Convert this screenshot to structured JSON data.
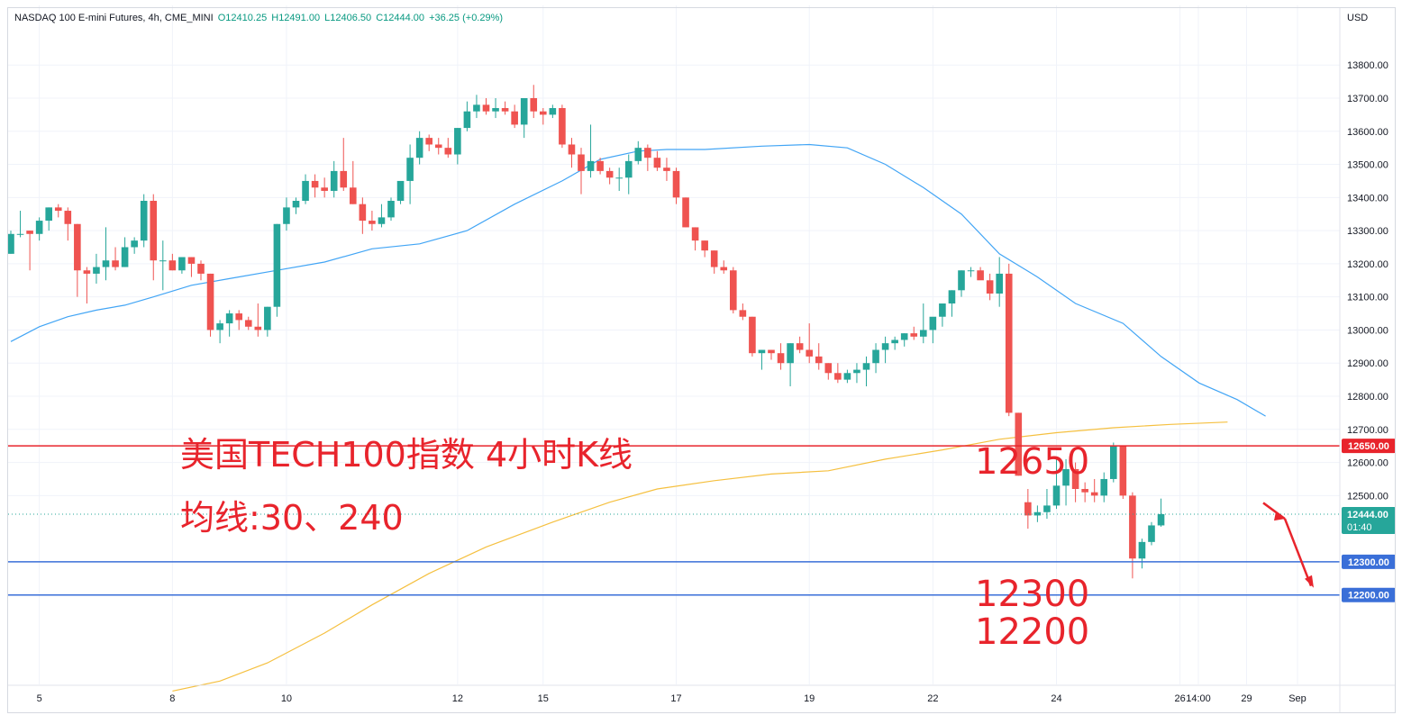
{
  "legend": {
    "symbol": "NASDAQ 100 E-mini Futures, 4h, CME_MINI",
    "open": "O12410.25",
    "high": "H12491.00",
    "low": "L12406.50",
    "close": "C12444.00",
    "change": "+36.25 (+0.29%)"
  },
  "currency": "USD",
  "annotations": {
    "title": "美国TECH100指数 4小时K线",
    "subtitle": "均线:30、240",
    "level_12650": "12650",
    "level_12300": "12300",
    "level_12200": "12200"
  },
  "price_tags": {
    "line_12650": "12650.00",
    "line_12300": "12300.00",
    "line_12200": "12200.00",
    "last_price": "12444.00",
    "countdown": "01:40"
  },
  "colors": {
    "up": "#26a69a",
    "down": "#ef5350",
    "ma30": "#42a5f5",
    "ma240": "#f5c040",
    "resistance_line": "#e8242c",
    "support_line": "#3a6fd8",
    "annotation": "#e8242c"
  },
  "chart_data": {
    "type": "candlestick",
    "timeframe": "4h",
    "ylim": [
      11930,
      13980
    ],
    "y_ticks": [
      "13800.00",
      "13700.00",
      "13600.00",
      "13500.00",
      "13400.00",
      "13300.00",
      "13200.00",
      "13100.00",
      "13000.00",
      "12900.00",
      "12800.00",
      "12700.00",
      "12600.00",
      "12500.00"
    ],
    "x_ticks": [
      "5",
      "8",
      "10",
      "12",
      "15",
      "17",
      "19",
      "22",
      "24",
      "26",
      "29",
      "14:00",
      "Sep"
    ],
    "candles_ohlc": [
      [
        13230,
        13300,
        13230,
        13290
      ],
      [
        13290,
        13360,
        13280,
        13290
      ],
      [
        13300,
        13300,
        13180,
        13290
      ],
      [
        13290,
        13340,
        13270,
        13330
      ],
      [
        13330,
        13370,
        13300,
        13370
      ],
      [
        13370,
        13380,
        13340,
        13360
      ],
      [
        13360,
        13370,
        13270,
        13320
      ],
      [
        13320,
        13320,
        13100,
        13180
      ],
      [
        13180,
        13190,
        13080,
        13170
      ],
      [
        13170,
        13230,
        13140,
        13190
      ],
      [
        13190,
        13310,
        13150,
        13210
      ],
      [
        13210,
        13250,
        13180,
        13190
      ],
      [
        13190,
        13280,
        13190,
        13250
      ],
      [
        13250,
        13280,
        13230,
        13270
      ],
      [
        13270,
        13410,
        13250,
        13390
      ],
      [
        13390,
        13410,
        13150,
        13210
      ],
      [
        13210,
        13270,
        13120,
        13210
      ],
      [
        13210,
        13230,
        13180,
        13180
      ],
      [
        13180,
        13220,
        13170,
        13220
      ],
      [
        13220,
        13220,
        13160,
        13200
      ],
      [
        13200,
        13210,
        13150,
        13170
      ],
      [
        13170,
        13170,
        12980,
        13000
      ],
      [
        13000,
        13030,
        12960,
        13020
      ],
      [
        13020,
        13060,
        12980,
        13050
      ],
      [
        13050,
        13060,
        13000,
        13030
      ],
      [
        13030,
        13040,
        13000,
        13010
      ],
      [
        13010,
        13080,
        12980,
        13000
      ],
      [
        13000,
        13070,
        12980,
        13070
      ],
      [
        13070,
        13320,
        13040,
        13320
      ],
      [
        13320,
        13400,
        13300,
        13370
      ],
      [
        13370,
        13400,
        13350,
        13390
      ],
      [
        13390,
        13470,
        13380,
        13450
      ],
      [
        13450,
        13470,
        13400,
        13430
      ],
      [
        13430,
        13460,
        13400,
        13420
      ],
      [
        13420,
        13510,
        13400,
        13480
      ],
      [
        13480,
        13580,
        13420,
        13430
      ],
      [
        13430,
        13510,
        13380,
        13380
      ],
      [
        13380,
        13400,
        13290,
        13330
      ],
      [
        13330,
        13360,
        13300,
        13320
      ],
      [
        13320,
        13380,
        13310,
        13340
      ],
      [
        13340,
        13400,
        13330,
        13390
      ],
      [
        13390,
        13440,
        13380,
        13450
      ],
      [
        13450,
        13560,
        13380,
        13520
      ],
      [
        13520,
        13600,
        13500,
        13580
      ],
      [
        13580,
        13590,
        13540,
        13560
      ],
      [
        13560,
        13580,
        13530,
        13550
      ],
      [
        13550,
        13580,
        13520,
        13530
      ],
      [
        13530,
        13610,
        13500,
        13610
      ],
      [
        13610,
        13690,
        13600,
        13660
      ],
      [
        13660,
        13710,
        13640,
        13680
      ],
      [
        13680,
        13700,
        13650,
        13660
      ],
      [
        13660,
        13700,
        13640,
        13670
      ],
      [
        13670,
        13690,
        13650,
        13660
      ],
      [
        13660,
        13680,
        13610,
        13620
      ],
      [
        13620,
        13700,
        13580,
        13700
      ],
      [
        13700,
        13740,
        13640,
        13660
      ],
      [
        13660,
        13670,
        13620,
        13650
      ],
      [
        13650,
        13680,
        13640,
        13670
      ],
      [
        13670,
        13680,
        13550,
        13560
      ],
      [
        13560,
        13580,
        13490,
        13530
      ],
      [
        13530,
        13550,
        13410,
        13480
      ],
      [
        13480,
        13620,
        13460,
        13510
      ],
      [
        13510,
        13520,
        13470,
        13480
      ],
      [
        13480,
        13490,
        13440,
        13460
      ],
      [
        13460,
        13490,
        13420,
        13460
      ],
      [
        13460,
        13530,
        13410,
        13510
      ],
      [
        13510,
        13570,
        13500,
        13550
      ],
      [
        13550,
        13560,
        13480,
        13520
      ],
      [
        13520,
        13540,
        13480,
        13490
      ],
      [
        13490,
        13520,
        13450,
        13480
      ],
      [
        13480,
        13490,
        13380,
        13400
      ],
      [
        13400,
        13400,
        13310,
        13310
      ],
      [
        13310,
        13310,
        13240,
        13270
      ],
      [
        13270,
        13270,
        13220,
        13240
      ],
      [
        13240,
        13240,
        13170,
        13190
      ],
      [
        13190,
        13210,
        13170,
        13180
      ],
      [
        13180,
        13190,
        13050,
        13060
      ],
      [
        13060,
        13080,
        13030,
        13040
      ],
      [
        13040,
        13040,
        12920,
        12930
      ],
      [
        12930,
        12940,
        12880,
        12940
      ],
      [
        12940,
        12940,
        12910,
        12930
      ],
      [
        12930,
        12960,
        12880,
        12900
      ],
      [
        12900,
        12960,
        12830,
        12960
      ],
      [
        12960,
        12980,
        12930,
        12940
      ],
      [
        12940,
        13020,
        12900,
        12920
      ],
      [
        12920,
        12960,
        12880,
        12900
      ],
      [
        12900,
        12900,
        12850,
        12870
      ],
      [
        12870,
        12900,
        12840,
        12850
      ],
      [
        12850,
        12880,
        12840,
        12870
      ],
      [
        12870,
        12900,
        12840,
        12880
      ],
      [
        12880,
        12920,
        12830,
        12900
      ],
      [
        12900,
        12960,
        12870,
        12940
      ],
      [
        12940,
        12980,
        12900,
        12960
      ],
      [
        12960,
        12980,
        12940,
        12970
      ],
      [
        12970,
        12990,
        12950,
        12990
      ],
      [
        12990,
        13010,
        12970,
        12980
      ],
      [
        12980,
        13080,
        12960,
        13000
      ],
      [
        13000,
        13010,
        12960,
        13040
      ],
      [
        13040,
        13060,
        13010,
        13080
      ],
      [
        13080,
        13120,
        13040,
        13120
      ],
      [
        13120,
        13180,
        13100,
        13180
      ],
      [
        13180,
        13190,
        13160,
        13180
      ],
      [
        13180,
        13190,
        13160,
        13150
      ],
      [
        13150,
        13170,
        13090,
        13110
      ],
      [
        13110,
        13220,
        13070,
        13170
      ],
      [
        13170,
        13200,
        12740,
        12750
      ],
      [
        12750,
        12750,
        12560,
        12560
      ],
      [
        12480,
        12520,
        12400,
        12440
      ],
      [
        12440,
        12470,
        12420,
        12450
      ],
      [
        12450,
        12520,
        12430,
        12470
      ],
      [
        12470,
        12610,
        12460,
        12530
      ],
      [
        12530,
        12610,
        12470,
        12580
      ],
      [
        12580,
        12600,
        12480,
        12520
      ],
      [
        12520,
        12540,
        12480,
        12510
      ],
      [
        12510,
        12550,
        12480,
        12500
      ],
      [
        12500,
        12570,
        12480,
        12550
      ],
      [
        12550,
        12660,
        12540,
        12650
      ],
      [
        12650,
        12650,
        12490,
        12500
      ],
      [
        12500,
        12510,
        12250,
        12310
      ],
      [
        12310,
        12370,
        12280,
        12360
      ],
      [
        12360,
        12420,
        12350,
        12410
      ],
      [
        12410,
        12491,
        12406,
        12444
      ]
    ],
    "moving_averages": [
      {
        "name": "30",
        "color": "#42a5f5",
        "points": [
          [
            0,
            12965
          ],
          [
            3,
            13010
          ],
          [
            6,
            13040
          ],
          [
            9,
            13060
          ],
          [
            12,
            13075
          ],
          [
            15,
            13100
          ],
          [
            19,
            13135
          ],
          [
            23,
            13155
          ],
          [
            28,
            13180
          ],
          [
            33,
            13205
          ],
          [
            38,
            13245
          ],
          [
            43,
            13260
          ],
          [
            48,
            13300
          ],
          [
            53,
            13380
          ],
          [
            58,
            13450
          ],
          [
            62,
            13515
          ],
          [
            66,
            13540
          ],
          [
            69,
            13545
          ],
          [
            73,
            13545
          ],
          [
            79,
            13555
          ],
          [
            84,
            13560
          ],
          [
            88,
            13550
          ],
          [
            92,
            13500
          ],
          [
            96,
            13430
          ],
          [
            100,
            13350
          ],
          [
            104,
            13230
          ],
          [
            108,
            13160
          ],
          [
            112,
            13080
          ],
          [
            117,
            13020
          ],
          [
            121,
            12920
          ],
          [
            125,
            12840
          ],
          [
            129,
            12790
          ],
          [
            132,
            12740
          ]
        ]
      },
      {
        "name": "240",
        "color": "#f5c040",
        "points": [
          [
            17,
            11910
          ],
          [
            22,
            11940
          ],
          [
            27,
            11995
          ],
          [
            33,
            12085
          ],
          [
            38,
            12170
          ],
          [
            44,
            12265
          ],
          [
            50,
            12345
          ],
          [
            57,
            12420
          ],
          [
            63,
            12480
          ],
          [
            68,
            12520
          ],
          [
            74,
            12545
          ],
          [
            80,
            12565
          ],
          [
            86,
            12575
          ],
          [
            92,
            12610
          ],
          [
            98,
            12638
          ],
          [
            104,
            12670
          ],
          [
            110,
            12690
          ],
          [
            116,
            12705
          ],
          [
            122,
            12715
          ],
          [
            128,
            12722
          ]
        ]
      }
    ],
    "horizontal_lines": [
      {
        "price": 12650,
        "color": "#e8242c"
      },
      {
        "price": 12300,
        "color": "#3a6fd8"
      },
      {
        "price": 12200,
        "color": "#3a6fd8"
      }
    ],
    "last_price": 12444,
    "forecast_arrow": [
      [
        12478,
        12430
      ],
      [
        12440,
        12200
      ]
    ]
  }
}
